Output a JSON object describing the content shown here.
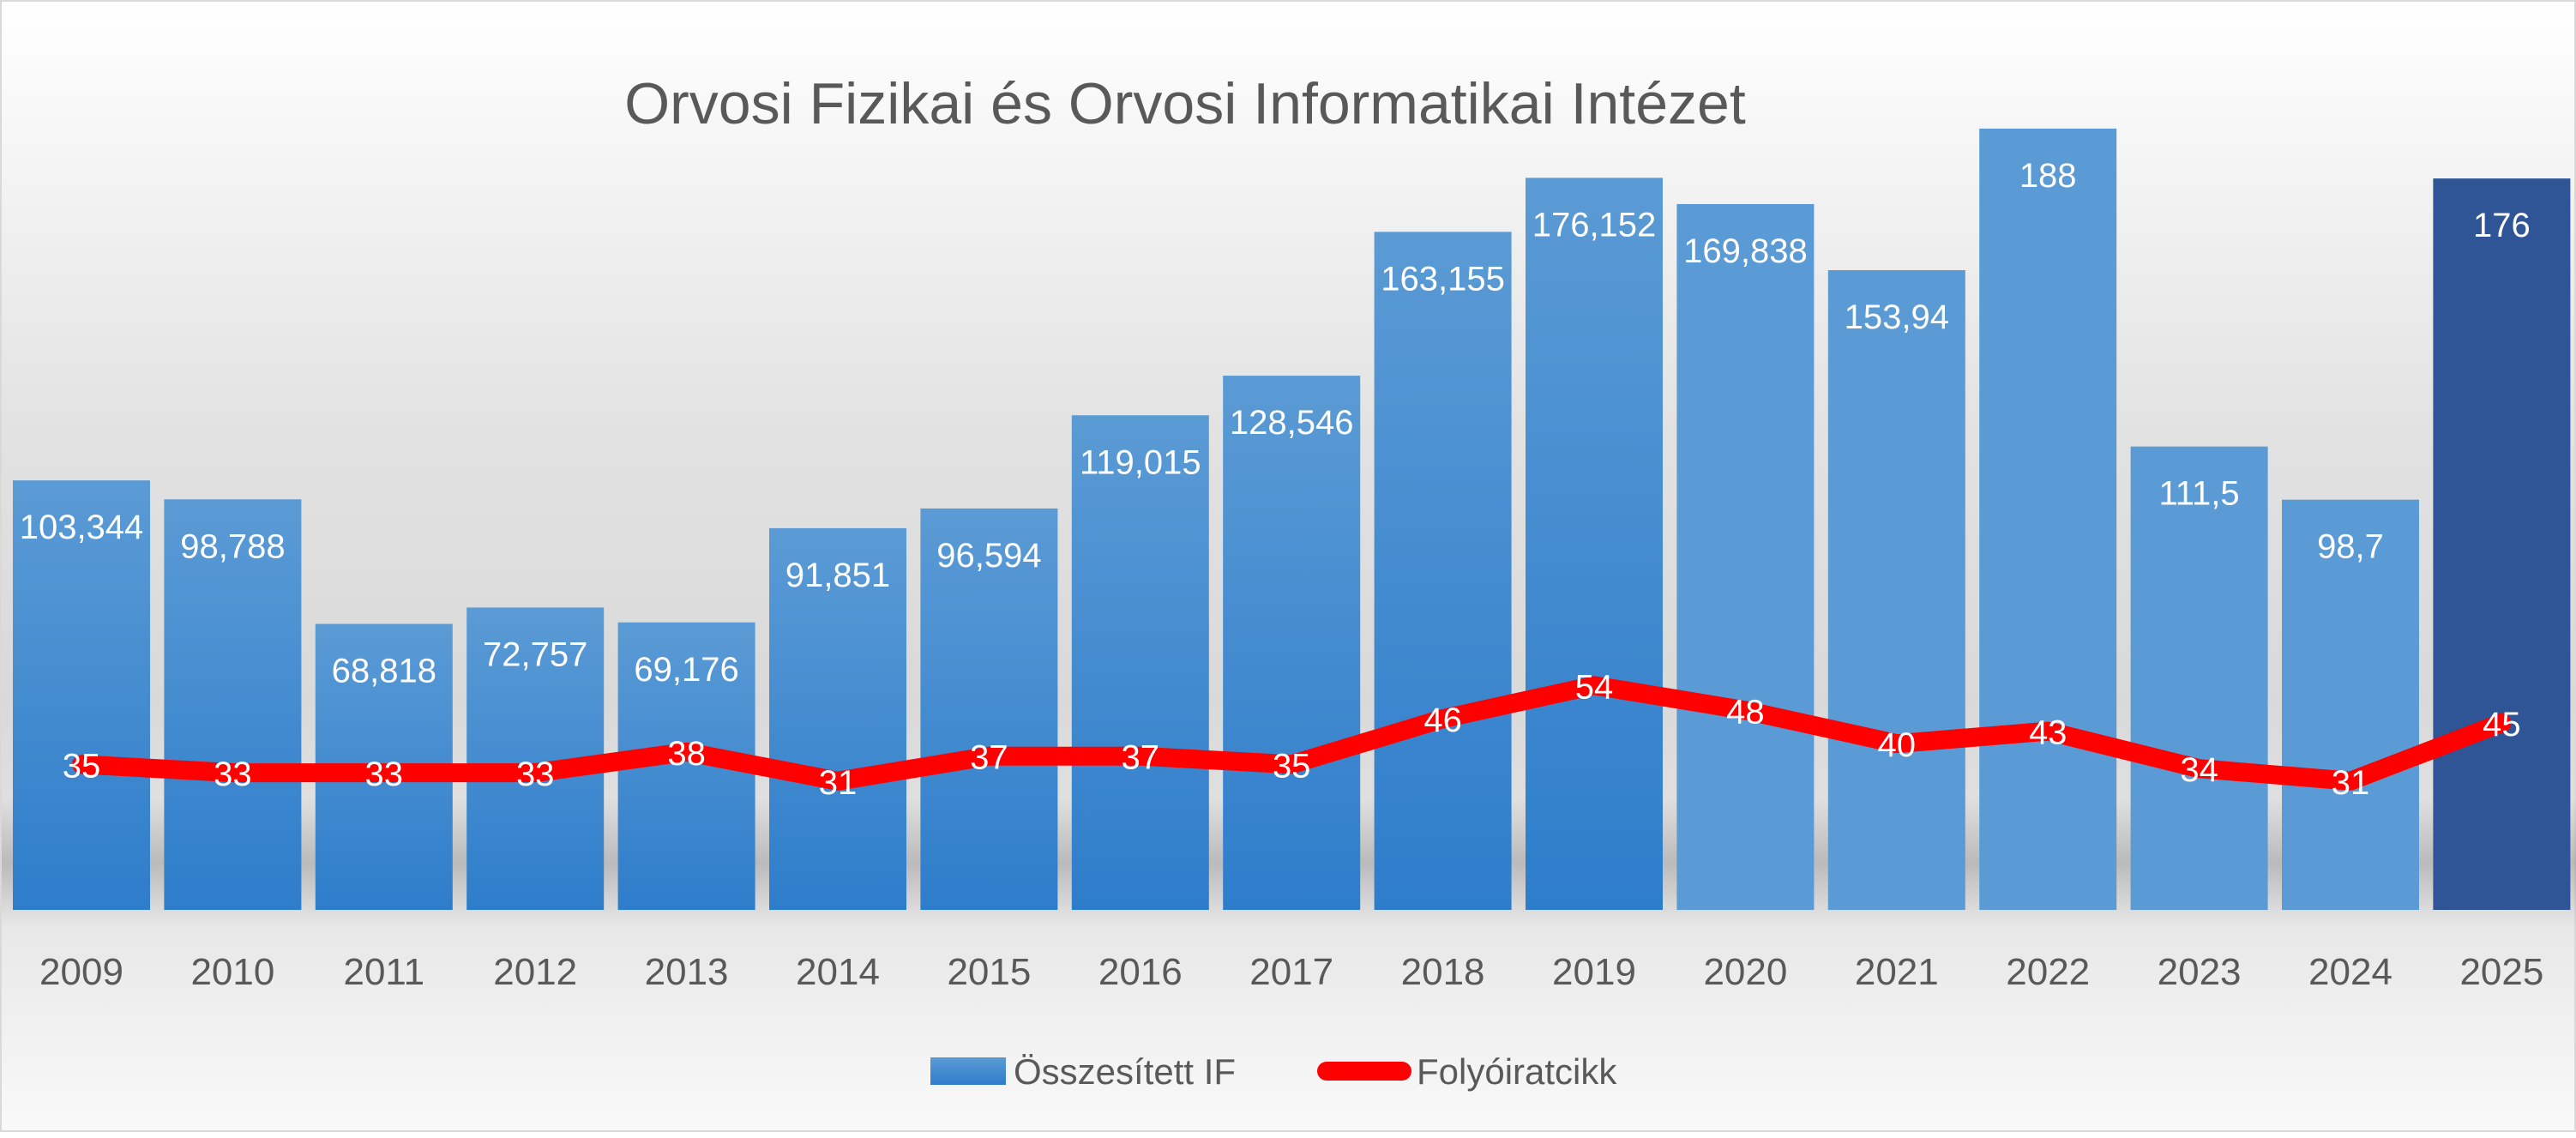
{
  "chart_data": {
    "type": "bar+line",
    "title": "Orvosi Fizikai és Orvosi Informatikai Intézet",
    "categories": [
      "2009",
      "2010",
      "2011",
      "2012",
      "2013",
      "2014",
      "2015",
      "2016",
      "2017",
      "2018",
      "2019",
      "2020",
      "2021",
      "2022",
      "2023",
      "2024",
      "2025"
    ],
    "series": [
      {
        "name": "Összesített IF",
        "type": "bar",
        "values": [
          103.344,
          98.788,
          68.818,
          72.757,
          69.176,
          91.851,
          96.594,
          119.015,
          128.546,
          163.155,
          176.152,
          169.838,
          153.94,
          188,
          111.5,
          98.7,
          176
        ],
        "labels": [
          "103,344",
          "98,788",
          "68,818",
          "72,757",
          "69,176",
          "91,851",
          "96,594",
          "119,015",
          "128,546",
          "163,155",
          "176,152",
          "169,838",
          "153,94",
          "188",
          "111,5",
          "98,7",
          "176"
        ]
      },
      {
        "name": "Folyóiratcikk",
        "type": "line",
        "values": [
          35,
          33,
          33,
          33,
          38,
          31,
          37,
          37,
          35,
          46,
          54,
          48,
          40,
          43,
          34,
          31,
          45
        ],
        "labels": [
          "35",
          "33",
          "33",
          "33",
          "38",
          "31",
          "37",
          "37",
          "35",
          "46",
          "54",
          "48",
          "40",
          "43",
          "34",
          "31",
          "45"
        ]
      }
    ],
    "ylim": [
      0,
      218
    ],
    "grid": false,
    "legend_position": "bottom",
    "colors": {
      "bar_gradient_top": "#5b9bd5",
      "bar_gradient_bottom": "#2e7dcb",
      "bar_flat": "#5b9bd5",
      "bar_highlight": "#2f5597",
      "line": "#ff0000",
      "title": "#595959",
      "axis_labels": "#595959"
    }
  }
}
